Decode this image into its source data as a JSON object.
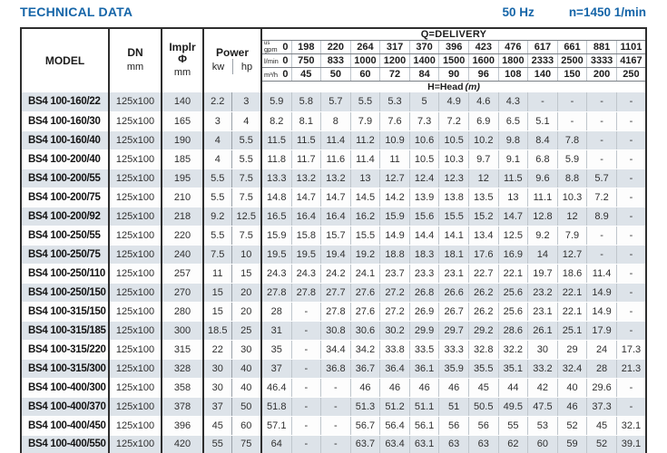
{
  "title": "TECHNICAL DATA",
  "frequency_label": "50 Hz",
  "speed_label": "n=1450 1/min",
  "colors": {
    "accent": "#1565a8",
    "row_shaded": "#dde3e9",
    "border_dark": "#2e2e2e"
  },
  "table": {
    "header": {
      "model": "MODEL",
      "dn": "DN",
      "dn_unit": "mm",
      "impeller_line1": "Implr",
      "impeller_line2": "Φ",
      "impeller_unit": "mm",
      "power": "Power",
      "power_kw": "kw",
      "power_hp": "hp",
      "delivery": "Q=DELIVERY",
      "head": "H=Head",
      "head_unit": "(m)",
      "flow_rows": [
        {
          "unit_sup": "us",
          "unit": "gpm",
          "values": [
            "0",
            "198",
            "220",
            "264",
            "317",
            "370",
            "396",
            "423",
            "476",
            "617",
            "661",
            "881",
            "1101"
          ]
        },
        {
          "unit_sup": "",
          "unit": "l/min",
          "values": [
            "0",
            "750",
            "833",
            "1000",
            "1200",
            "1400",
            "1500",
            "1600",
            "1800",
            "2333",
            "2500",
            "3333",
            "4167"
          ]
        },
        {
          "unit_sup": "",
          "unit": "m³/h",
          "values": [
            "0",
            "45",
            "50",
            "60",
            "72",
            "84",
            "90",
            "96",
            "108",
            "140",
            "150",
            "200",
            "250"
          ]
        }
      ]
    },
    "rows": [
      {
        "model": "BS4 100-160/22",
        "dn": "125x100",
        "impeller": "140",
        "kw": "2.2",
        "hp": "3",
        "head": [
          "5.9",
          "5.8",
          "5.7",
          "5.5",
          "5.3",
          "5",
          "4.9",
          "4.6",
          "4.3",
          "-",
          "-",
          "-",
          "-"
        ]
      },
      {
        "model": "BS4 100-160/30",
        "dn": "125x100",
        "impeller": "165",
        "kw": "3",
        "hp": "4",
        "head": [
          "8.2",
          "8.1",
          "8",
          "7.9",
          "7.6",
          "7.3",
          "7.2",
          "6.9",
          "6.5",
          "5.1",
          "-",
          "-",
          "-"
        ]
      },
      {
        "model": "BS4 100-160/40",
        "dn": "125x100",
        "impeller": "190",
        "kw": "4",
        "hp": "5.5",
        "head": [
          "11.5",
          "11.5",
          "11.4",
          "11.2",
          "10.9",
          "10.6",
          "10.5",
          "10.2",
          "9.8",
          "8.4",
          "7.8",
          "-",
          "-"
        ]
      },
      {
        "model": "BS4 100-200/40",
        "dn": "125x100",
        "impeller": "185",
        "kw": "4",
        "hp": "5.5",
        "head": [
          "11.8",
          "11.7",
          "11.6",
          "11.4",
          "11",
          "10.5",
          "10.3",
          "9.7",
          "9.1",
          "6.8",
          "5.9",
          "-",
          "-"
        ]
      },
      {
        "model": "BS4 100-200/55",
        "dn": "125x100",
        "impeller": "195",
        "kw": "5.5",
        "hp": "7.5",
        "head": [
          "13.3",
          "13.2",
          "13.2",
          "13",
          "12.7",
          "12.4",
          "12.3",
          "12",
          "11.5",
          "9.6",
          "8.8",
          "5.7",
          "-"
        ]
      },
      {
        "model": "BS4 100-200/75",
        "dn": "125x100",
        "impeller": "210",
        "kw": "5.5",
        "hp": "7.5",
        "head": [
          "14.8",
          "14.7",
          "14.7",
          "14.5",
          "14.2",
          "13.9",
          "13.8",
          "13.5",
          "13",
          "11.1",
          "10.3",
          "7.2",
          "-"
        ]
      },
      {
        "model": "BS4 100-200/92",
        "dn": "125x100",
        "impeller": "218",
        "kw": "9.2",
        "hp": "12.5",
        "head": [
          "16.5",
          "16.4",
          "16.4",
          "16.2",
          "15.9",
          "15.6",
          "15.5",
          "15.2",
          "14.7",
          "12.8",
          "12",
          "8.9",
          "-"
        ]
      },
      {
        "model": "BS4 100-250/55",
        "dn": "125x100",
        "impeller": "220",
        "kw": "5.5",
        "hp": "7.5",
        "head": [
          "15.9",
          "15.8",
          "15.7",
          "15.5",
          "14.9",
          "14.4",
          "14.1",
          "13.4",
          "12.5",
          "9.2",
          "7.9",
          "-",
          "-"
        ]
      },
      {
        "model": "BS4 100-250/75",
        "dn": "125x100",
        "impeller": "240",
        "kw": "7.5",
        "hp": "10",
        "head": [
          "19.5",
          "19.5",
          "19.4",
          "19.2",
          "18.8",
          "18.3",
          "18.1",
          "17.6",
          "16.9",
          "14",
          "12.7",
          "-",
          "-"
        ]
      },
      {
        "model": "BS4 100-250/110",
        "dn": "125x100",
        "impeller": "257",
        "kw": "11",
        "hp": "15",
        "head": [
          "24.3",
          "24.3",
          "24.2",
          "24.1",
          "23.7",
          "23.3",
          "23.1",
          "22.7",
          "22.1",
          "19.7",
          "18.6",
          "11.4",
          "-"
        ]
      },
      {
        "model": "BS4 100-250/150",
        "dn": "125x100",
        "impeller": "270",
        "kw": "15",
        "hp": "20",
        "head": [
          "27.8",
          "27.8",
          "27.7",
          "27.6",
          "27.2",
          "26.8",
          "26.6",
          "26.2",
          "25.6",
          "23.2",
          "22.1",
          "14.9",
          "-"
        ]
      },
      {
        "model": "BS4 100-315/150",
        "dn": "125x100",
        "impeller": "280",
        "kw": "15",
        "hp": "20",
        "head": [
          "28",
          "-",
          "27.8",
          "27.6",
          "27.2",
          "26.9",
          "26.7",
          "26.2",
          "25.6",
          "23.1",
          "22.1",
          "14.9",
          "-"
        ]
      },
      {
        "model": "BS4 100-315/185",
        "dn": "125x100",
        "impeller": "300",
        "kw": "18.5",
        "hp": "25",
        "head": [
          "31",
          "-",
          "30.8",
          "30.6",
          "30.2",
          "29.9",
          "29.7",
          "29.2",
          "28.6",
          "26.1",
          "25.1",
          "17.9",
          "-"
        ]
      },
      {
        "model": "BS4 100-315/220",
        "dn": "125x100",
        "impeller": "315",
        "kw": "22",
        "hp": "30",
        "head": [
          "35",
          "-",
          "34.4",
          "34.2",
          "33.8",
          "33.5",
          "33.3",
          "32.8",
          "32.2",
          "30",
          "29",
          "24",
          "17.3"
        ]
      },
      {
        "model": "BS4 100-315/300",
        "dn": "125x100",
        "impeller": "328",
        "kw": "30",
        "hp": "40",
        "head": [
          "37",
          "-",
          "36.8",
          "36.7",
          "36.4",
          "36.1",
          "35.9",
          "35.5",
          "35.1",
          "33.2",
          "32.4",
          "28",
          "21.3"
        ]
      },
      {
        "model": "BS4 100-400/300",
        "dn": "125x100",
        "impeller": "358",
        "kw": "30",
        "hp": "40",
        "head": [
          "46.4",
          "-",
          "-",
          "46",
          "46",
          "46",
          "46",
          "45",
          "44",
          "42",
          "40",
          "29.6",
          "-"
        ]
      },
      {
        "model": "BS4 100-400/370",
        "dn": "125x100",
        "impeller": "378",
        "kw": "37",
        "hp": "50",
        "head": [
          "51.8",
          "-",
          "-",
          "51.3",
          "51.2",
          "51.1",
          "51",
          "50.5",
          "49.5",
          "47.5",
          "46",
          "37.3",
          "-"
        ]
      },
      {
        "model": "BS4 100-400/450",
        "dn": "125x100",
        "impeller": "396",
        "kw": "45",
        "hp": "60",
        "head": [
          "57.1",
          "-",
          "-",
          "56.7",
          "56.4",
          "56.1",
          "56",
          "56",
          "55",
          "53",
          "52",
          "45",
          "32.1"
        ]
      },
      {
        "model": "BS4 100-400/550",
        "dn": "125x100",
        "impeller": "420",
        "kw": "55",
        "hp": "75",
        "head": [
          "64",
          "-",
          "-",
          "63.7",
          "63.4",
          "63.1",
          "63",
          "63",
          "62",
          "60",
          "59",
          "52",
          "39.1"
        ]
      }
    ]
  }
}
